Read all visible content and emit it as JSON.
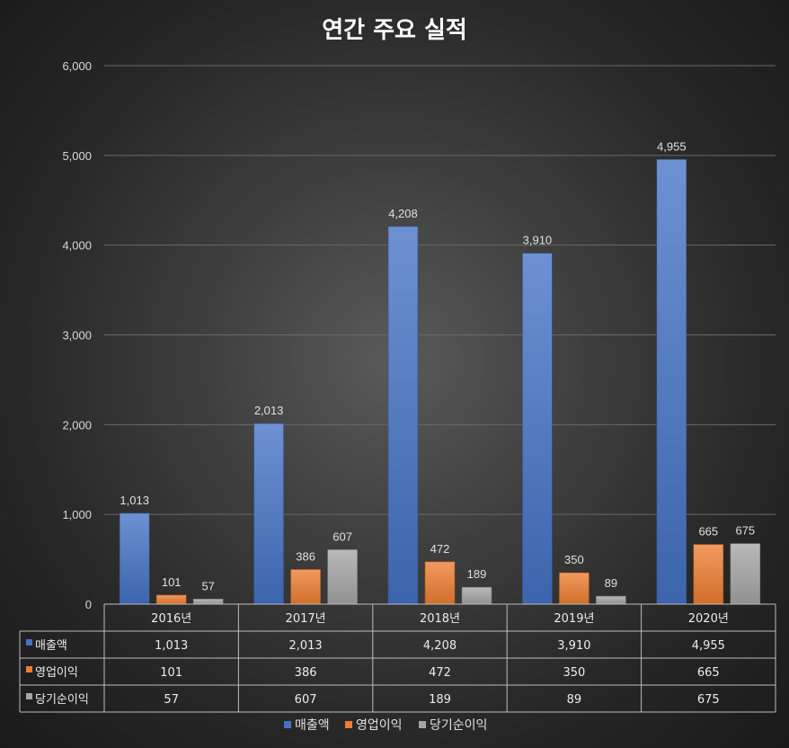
{
  "chart_data": {
    "type": "bar",
    "title": "연간 주요 실적",
    "categories": [
      "2016년",
      "2017년",
      "2018년",
      "2019년",
      "2020년"
    ],
    "series": [
      {
        "name": "매출액",
        "color": "#4472c4",
        "values": [
          1013,
          2013,
          4208,
          3910,
          4955
        ],
        "labels": [
          "1,013",
          "2,013",
          "4,208",
          "3,910",
          "4,955"
        ]
      },
      {
        "name": "영업이익",
        "color": "#ed7d31",
        "values": [
          101,
          386,
          472,
          350,
          665
        ],
        "labels": [
          "101",
          "386",
          "472",
          "350",
          "665"
        ]
      },
      {
        "name": "당기순이익",
        "color": "#a5a5a5",
        "values": [
          57,
          607,
          189,
          89,
          675
        ],
        "labels": [
          "57",
          "607",
          "189",
          "89",
          "675"
        ]
      }
    ],
    "ylim": [
      0,
      6000
    ],
    "yticks": [
      0,
      1000,
      2000,
      3000,
      4000,
      5000,
      6000
    ],
    "ytick_labels": [
      "0",
      "1,000",
      "2,000",
      "3,000",
      "4,000",
      "5,000",
      "6,000"
    ],
    "grid": true,
    "data_table": true,
    "legend_position": "bottom"
  }
}
